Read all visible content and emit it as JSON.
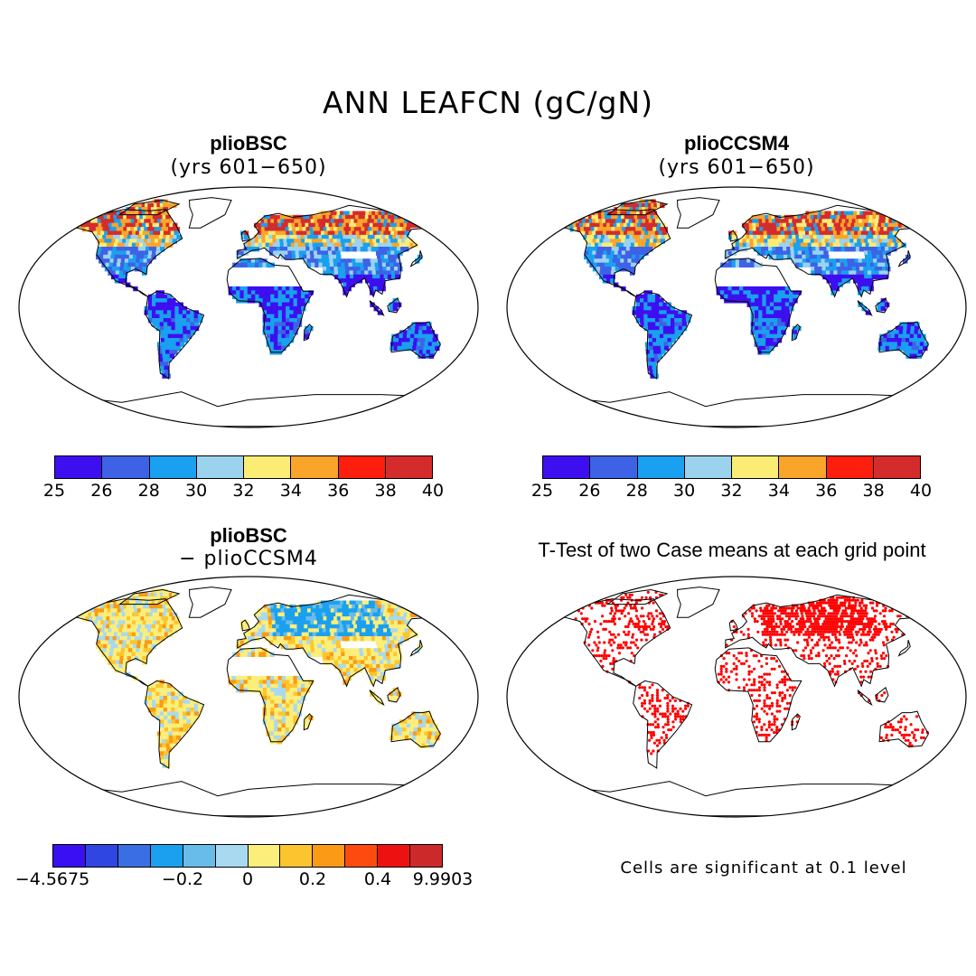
{
  "figure": {
    "title": "ANN LEAFCN (gC/gN)"
  },
  "panels": [
    {
      "title": "plioBSC",
      "subtitle": "(yrs 601−650)",
      "field": "mean",
      "colorbar": "mean"
    },
    {
      "title": "plioCCSM4",
      "subtitle": "(yrs 601−650)",
      "field": "mean2",
      "colorbar": "mean"
    },
    {
      "title": "plioBSC",
      "subtitle": "− plioCCSM4",
      "field": "diff",
      "colorbar": "diff"
    },
    {
      "title": "T-Test of two Case means at each grid point",
      "subtitle": "",
      "field": "ttest",
      "colorbar": null
    }
  ],
  "colorbars": {
    "mean": {
      "colors": [
        "#3d0ff0",
        "#3e62e6",
        "#1aa0f0",
        "#9bd3ef",
        "#fbec74",
        "#f9a52a",
        "#fe1e0e",
        "#d42c2c"
      ],
      "tick_labels": [
        "25",
        "26",
        "28",
        "30",
        "32",
        "34",
        "36",
        "38",
        "40"
      ]
    },
    "diff": {
      "colors": [
        "#3a10f2",
        "#2f46e2",
        "#3a6fe3",
        "#1aa0ee",
        "#68bce9",
        "#a9d9f0",
        "#fbee7a",
        "#fcc52f",
        "#fb9a14",
        "#fd4b0f",
        "#ee1111",
        "#cc2a2a"
      ],
      "tick_labels": [
        "−4.5675",
        "",
        "−0.2",
        "0",
        "0.2",
        "0.4",
        "9.9903"
      ]
    }
  },
  "significance": {
    "note": "Cells are significant at 0.1 level",
    "color": "#ff0000"
  }
}
